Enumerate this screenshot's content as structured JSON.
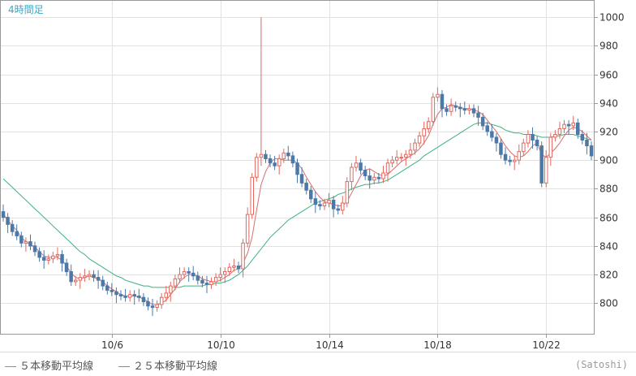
{
  "chart": {
    "timeframe_label": "4時間足",
    "credit": "(Satoshi)",
    "colors": {
      "up": "#e4665d",
      "down": "#4d79a8",
      "ma5": "#d96c6c",
      "ma25": "#3fb27f",
      "grid": "#e2e2e2",
      "axis": "#999999",
      "tick_label": "#333333"
    },
    "legend": [
      {
        "label": "５本移動平均線",
        "color": "#d96c6c"
      },
      {
        "label": "２５本移動平均線",
        "color": "#3fb27f"
      }
    ]
  },
  "chart_data": {
    "type": "candlestick",
    "title": "",
    "xlabel": "",
    "ylabel": "",
    "ylim": [
      778,
      1012
    ],
    "y_ticks": [
      800,
      820,
      840,
      860,
      880,
      900,
      920,
      940,
      960,
      980,
      1000
    ],
    "x_tick_labels": [
      "10/6",
      "10/10",
      "10/14",
      "10/18",
      "10/22"
    ],
    "x_tick_index": [
      24,
      48,
      72,
      96,
      120
    ],
    "candle_count": 131,
    "closes": [
      860,
      855,
      850,
      847,
      842,
      843,
      840,
      836,
      832,
      830,
      831,
      833,
      834,
      828,
      822,
      815,
      816,
      818,
      819,
      820,
      818,
      816,
      812,
      809,
      808,
      806,
      805,
      804,
      806,
      805,
      804,
      801,
      798,
      797,
      799,
      804,
      807,
      812,
      817,
      820,
      822,
      821,
      819,
      816,
      814,
      813,
      815,
      818,
      820,
      822,
      825,
      826,
      824,
      842,
      862,
      888,
      902,
      904,
      901,
      898,
      896,
      901,
      905,
      903,
      898,
      890,
      884,
      879,
      873,
      869,
      868,
      870,
      872,
      866,
      865,
      870,
      885,
      895,
      898,
      893,
      889,
      886,
      888,
      887,
      891,
      898,
      900,
      902,
      902,
      904,
      907,
      912,
      917,
      922,
      927,
      944,
      946,
      936,
      934,
      938,
      937,
      936,
      935,
      936,
      933,
      930,
      924,
      920,
      916,
      912,
      904,
      900,
      899,
      900,
      906,
      912,
      918,
      914,
      910,
      884,
      902,
      916,
      918,
      922,
      925,
      924,
      926,
      918,
      914,
      910,
      903
    ],
    "ma5": [
      862,
      858,
      854,
      851,
      846,
      843,
      841,
      839,
      836,
      833,
      832,
      832,
      832,
      830,
      826,
      821,
      818,
      817,
      818,
      819,
      818,
      817,
      815,
      812,
      810,
      808,
      806,
      805,
      805,
      805,
      804,
      803,
      801,
      799,
      799,
      800,
      802,
      806,
      810,
      815,
      818,
      820,
      820,
      819,
      817,
      816,
      815,
      815,
      816,
      818,
      820,
      823,
      824,
      828,
      835,
      846,
      865,
      883,
      892,
      898,
      901,
      901,
      900,
      900,
      900,
      898,
      894,
      888,
      883,
      878,
      874,
      871,
      870,
      869,
      868,
      868,
      871,
      877,
      883,
      889,
      893,
      894,
      892,
      890,
      889,
      890,
      893,
      896,
      899,
      901,
      903,
      905,
      908,
      912,
      917,
      925,
      932,
      936,
      937,
      939,
      938,
      937,
      936,
      936,
      935,
      934,
      932,
      928,
      924,
      920,
      915,
      910,
      906,
      903,
      902,
      903,
      906,
      910,
      912,
      904,
      902,
      905,
      908,
      912,
      917,
      921,
      923,
      922,
      920,
      917,
      914
    ],
    "ma25": [
      887,
      884,
      881,
      878,
      875,
      872,
      869,
      866,
      863,
      860,
      857,
      854,
      851,
      848,
      845,
      842,
      839,
      836,
      834,
      831,
      829,
      827,
      825,
      823,
      821,
      819,
      818,
      816,
      815,
      814,
      813,
      812,
      812,
      811,
      811,
      811,
      811,
      811,
      811,
      811,
      812,
      812,
      812,
      812,
      812,
      813,
      813,
      814,
      814,
      815,
      816,
      818,
      820,
      823,
      826,
      830,
      834,
      838,
      842,
      846,
      849,
      852,
      855,
      858,
      860,
      862,
      864,
      866,
      868,
      870,
      871,
      872,
      873,
      874,
      876,
      877,
      878,
      880,
      881,
      882,
      883,
      883,
      884,
      884,
      885,
      886,
      888,
      890,
      892,
      894,
      896,
      898,
      900,
      903,
      905,
      907,
      909,
      911,
      913,
      915,
      917,
      919,
      921,
      923,
      925,
      926,
      926,
      926,
      925,
      924,
      923,
      921,
      920,
      919,
      919,
      918,
      918,
      918,
      917,
      916,
      916,
      916,
      917,
      917,
      918,
      918,
      918,
      917,
      916,
      915,
      914
    ],
    "spike_high": {
      "index": 57,
      "value": 1000
    }
  }
}
